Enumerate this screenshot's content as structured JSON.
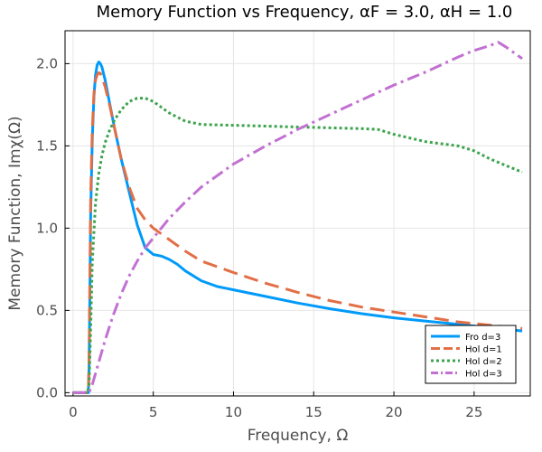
{
  "chart_data": {
    "type": "line",
    "title": "Memory Function vs Frequency, αF = 3.0, αH = 1.0",
    "xlabel": "Frequency, Ω",
    "ylabel": "Memory Function, Imχ(Ω)",
    "xlim": [
      -0.5,
      28.5
    ],
    "ylim": [
      -0.02,
      2.2
    ],
    "xticks": [
      0,
      5,
      10,
      15,
      20,
      25
    ],
    "yticks": [
      0.0,
      0.5,
      1.0,
      1.5,
      2.0
    ],
    "xtick_labels": [
      "0",
      "5",
      "10",
      "15",
      "20",
      "25"
    ],
    "ytick_labels": [
      "0.0",
      "0.5",
      "1.0",
      "1.5",
      "2.0"
    ],
    "grid": true,
    "legend_position": "bottom-right",
    "series": [
      {
        "name": "Fro d=3",
        "color": "#009af9",
        "dash": "solid",
        "x": [
          0,
          0.8,
          0.95,
          1.0,
          1.05,
          1.1,
          1.2,
          1.3,
          1.4,
          1.5,
          1.6,
          1.7,
          1.8,
          2.0,
          2.3,
          2.6,
          3.0,
          3.5,
          4.0,
          4.5,
          5.0,
          5.5,
          6.0,
          6.5,
          7.0,
          8.0,
          9.0,
          10.0,
          12.0,
          14.0,
          16.0,
          18.0,
          20.0,
          22.0,
          24.0,
          26.0,
          28.0
        ],
        "y": [
          0.0,
          0.0,
          0.0,
          0.15,
          0.6,
          1.1,
          1.55,
          1.8,
          1.93,
          1.99,
          2.01,
          2.0,
          1.98,
          1.9,
          1.75,
          1.6,
          1.42,
          1.22,
          1.02,
          0.88,
          0.84,
          0.83,
          0.81,
          0.78,
          0.74,
          0.68,
          0.645,
          0.625,
          0.585,
          0.545,
          0.51,
          0.48,
          0.455,
          0.435,
          0.415,
          0.395,
          0.375
        ]
      },
      {
        "name": "Hol d=1",
        "color": "#e26f46",
        "dash": "long-dash",
        "x": [
          0,
          0.8,
          0.95,
          1.0,
          1.05,
          1.1,
          1.2,
          1.3,
          1.4,
          1.5,
          1.6,
          1.7,
          1.8,
          2.0,
          2.3,
          2.6,
          3.0,
          3.5,
          4.0,
          4.5,
          5.0,
          6.0,
          7.0,
          8.0,
          10.0,
          12.0,
          14.0,
          16.0,
          18.0,
          20.0,
          22.0,
          24.0,
          26.0,
          28.0
        ],
        "y": [
          0.0,
          0.0,
          0.0,
          0.2,
          0.7,
          1.2,
          1.6,
          1.82,
          1.9,
          1.93,
          1.945,
          1.94,
          1.92,
          1.86,
          1.74,
          1.6,
          1.42,
          1.25,
          1.12,
          1.05,
          1.0,
          0.93,
          0.86,
          0.8,
          0.73,
          0.665,
          0.61,
          0.56,
          0.52,
          0.49,
          0.46,
          0.43,
          0.41,
          0.39
        ]
      },
      {
        "name": "Hol d=2",
        "color": "#3da44d",
        "dash": "dotted",
        "x": [
          0,
          0.9,
          1.0,
          1.1,
          1.2,
          1.4,
          1.6,
          1.8,
          2.0,
          2.3,
          2.6,
          3.0,
          3.5,
          4.0,
          4.5,
          5.0,
          6.0,
          7.0,
          8.0,
          10.0,
          12.0,
          14.0,
          16.0,
          18.0,
          19.0,
          20.0,
          22.0,
          24.0,
          25.0,
          26.0,
          28.0
        ],
        "y": [
          0.0,
          0.0,
          0.05,
          0.4,
          0.8,
          1.15,
          1.33,
          1.44,
          1.52,
          1.6,
          1.66,
          1.72,
          1.77,
          1.79,
          1.79,
          1.77,
          1.7,
          1.65,
          1.63,
          1.625,
          1.62,
          1.615,
          1.61,
          1.605,
          1.6,
          1.57,
          1.525,
          1.5,
          1.47,
          1.42,
          1.34
        ]
      },
      {
        "name": "Hol d=3",
        "color": "#c271d2",
        "dash": "dash-dot",
        "x": [
          0,
          1.0,
          1.2,
          1.5,
          2.0,
          2.5,
          3.0,
          3.5,
          4.0,
          4.5,
          5.0,
          6.0,
          7.0,
          8.0,
          10.0,
          12.0,
          14.0,
          16.0,
          18.0,
          20.0,
          22.0,
          24.0,
          25.0,
          26.0,
          26.5,
          27.0,
          28.0
        ],
        "y": [
          0.0,
          0.0,
          0.05,
          0.15,
          0.32,
          0.47,
          0.6,
          0.71,
          0.8,
          0.88,
          0.94,
          1.06,
          1.16,
          1.25,
          1.39,
          1.5,
          1.6,
          1.69,
          1.78,
          1.87,
          1.95,
          2.04,
          2.08,
          2.11,
          2.13,
          2.1,
          2.03
        ]
      }
    ]
  }
}
